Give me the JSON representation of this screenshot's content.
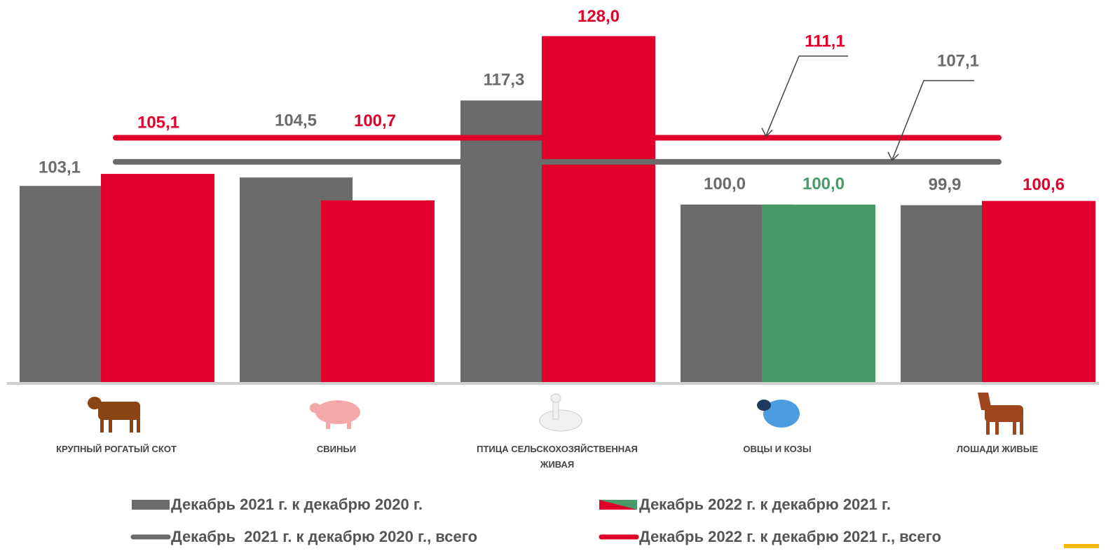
{
  "chart_data": {
    "type": "bar",
    "categories": [
      "Крупный рогатый скот",
      "Свиньи",
      "Птица сельскохозяйственная живая",
      "Овцы и козы",
      "Лошади живые"
    ],
    "series": [
      {
        "name": "Декабрь 2021 г. к декабрю 2020 г.",
        "color": "#6b6b6b",
        "values": [
          103.1,
          104.5,
          117.3,
          100.0,
          99.9
        ],
        "value_labels": [
          "103,1",
          "104,5",
          "117,3",
          "100,0",
          "99,9"
        ]
      },
      {
        "name": "Декабрь 2022 г. к декабрю 2021 г.",
        "color": "#e0002b",
        "colors": [
          "#e0002b",
          "#e0002b",
          "#e0002b",
          "#479b68",
          "#e0002b"
        ],
        "values": [
          105.1,
          100.7,
          128.0,
          100.0,
          100.6
        ],
        "value_labels": [
          "105,1",
          "100,7",
          "128,0",
          "100,0",
          "100,6"
        ]
      }
    ],
    "lines": [
      {
        "name": "Декабрь  2021 г. к декабрю 2020 г., всего",
        "color": "#6b6b6b",
        "value": 107.1,
        "value_label": "107,1"
      },
      {
        "name": "Декабрь 2022 г. к декабрю 2021 г., всего",
        "color": "#e0002b",
        "value": 111.1,
        "value_label": "111,1"
      }
    ],
    "ylim": [
      70.5,
      134
    ]
  }
}
